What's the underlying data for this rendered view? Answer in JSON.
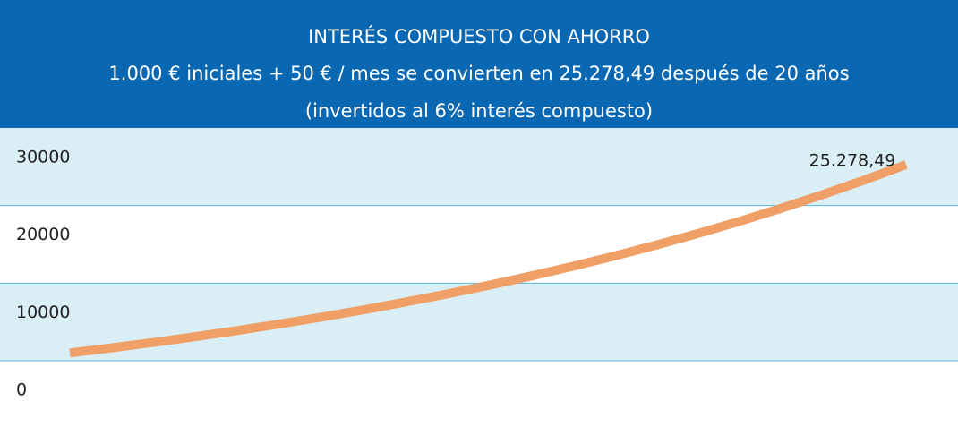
{
  "chart_data": {
    "type": "line",
    "title": "INTERÉS COMPUESTO CON AHORRO",
    "subtitle": [
      "1.000 € iniciales + 50 €  / mes se convierten en 25.278,49 después de 20 años",
      "(invertidos al 6% interés compuesto)"
    ],
    "categories": [
      null,
      null,
      null,
      null,
      null,
      null,
      null,
      null,
      null,
      null,
      null,
      null,
      null,
      null,
      null,
      null,
      null,
      null,
      null,
      null,
      null
    ],
    "series": [
      {
        "name": null,
        "color": "#f0a066",
        "values": [
          1000,
          1660,
          2359.6,
          3101.18,
          3887.25,
          4720.49,
          5603.71,
          6539.93,
          7532.33,
          8584.27,
          9699.33,
          10881.29,
          12134.16,
          13462.21,
          14869.94,
          16362.14,
          17943.87,
          19620.5,
          21397.73,
          23281.6,
          25278.49
        ],
        "value_labels": [
          null,
          null,
          null,
          null,
          null,
          null,
          null,
          null,
          null,
          null,
          null,
          null,
          null,
          null,
          null,
          null,
          null,
          null,
          null,
          null,
          "25.278,49"
        ]
      }
    ],
    "ylim": [
      0,
      30000
    ],
    "yticks": [
      0,
      10000,
      20000,
      30000
    ],
    "grid": true,
    "header_color": "#0a67b2",
    "band_color": "#daeef5"
  }
}
